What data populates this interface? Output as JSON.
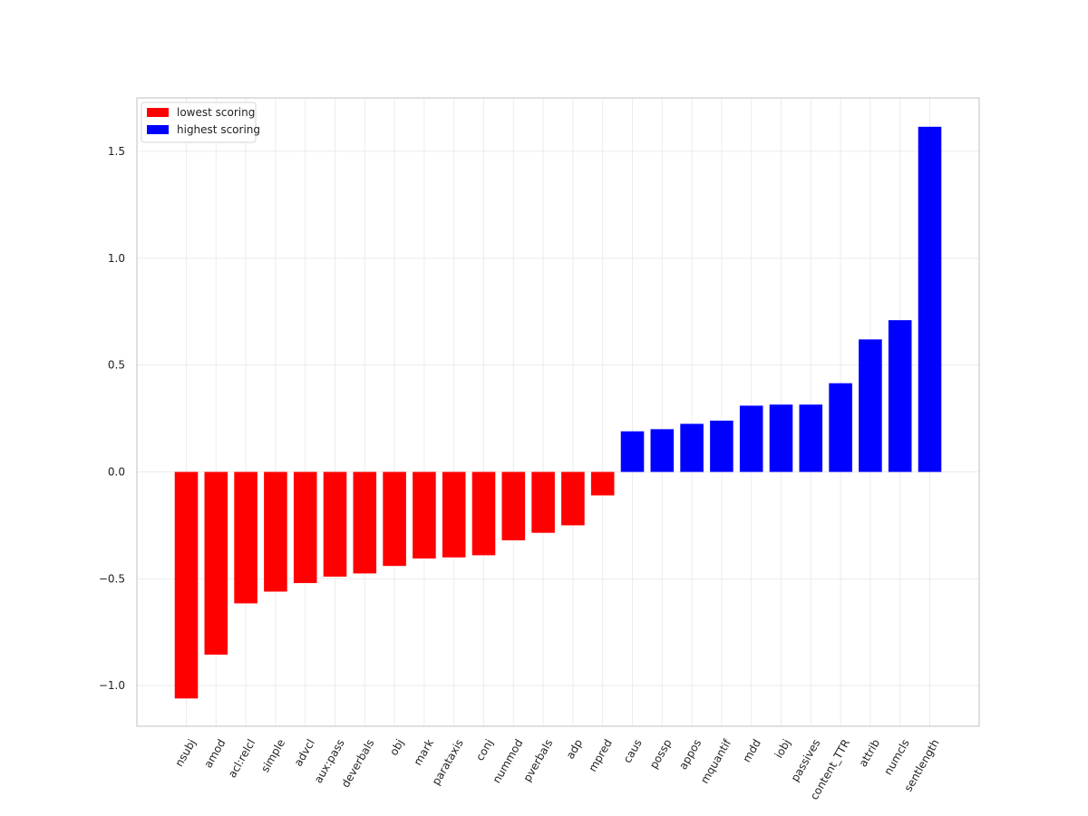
{
  "chart_data": {
    "type": "bar",
    "title": "",
    "xlabel": "",
    "ylabel": "",
    "ylim": [
      -1.19,
      1.75
    ],
    "yticks": [
      -1.0,
      -0.5,
      0.0,
      0.5,
      1.0,
      1.5
    ],
    "ytick_labels": [
      "−1.0",
      "−0.5",
      "0.0",
      "0.5",
      "1.0",
      "1.5"
    ],
    "grid": true,
    "legend_position": "top-left",
    "categories": [
      "nsubj",
      "amod",
      "acl:relcl",
      "simple",
      "advcl",
      "aux:pass",
      "deverbals",
      "obj",
      "mark",
      "parataxis",
      "conj",
      "nummod",
      "pverbals",
      "adp",
      "mpred",
      "caus",
      "possp",
      "appos",
      "mquantif",
      "mdd",
      "iobj",
      "passives",
      "content_TTR",
      "attrib",
      "numcls",
      "sentlength"
    ],
    "values": [
      -1.06,
      -0.855,
      -0.615,
      -0.56,
      -0.52,
      -0.49,
      -0.475,
      -0.44,
      -0.405,
      -0.4,
      -0.39,
      -0.32,
      -0.285,
      -0.25,
      -0.11,
      0.19,
      0.2,
      0.225,
      0.24,
      0.31,
      0.315,
      0.315,
      0.415,
      0.62,
      0.71,
      1.615
    ],
    "series": [
      {
        "name": "lowest scoring",
        "color": "#ff0000",
        "categories": [
          "nsubj",
          "amod",
          "acl:relcl",
          "simple",
          "advcl",
          "aux:pass",
          "deverbals",
          "obj",
          "mark",
          "parataxis",
          "conj",
          "nummod",
          "pverbals",
          "adp",
          "mpred"
        ]
      },
      {
        "name": "highest scoring",
        "color": "#0000ff",
        "categories": [
          "caus",
          "possp",
          "appos",
          "mquantif",
          "mdd",
          "iobj",
          "passives",
          "content_TTR",
          "attrib",
          "numcls",
          "sentlength"
        ]
      }
    ]
  }
}
